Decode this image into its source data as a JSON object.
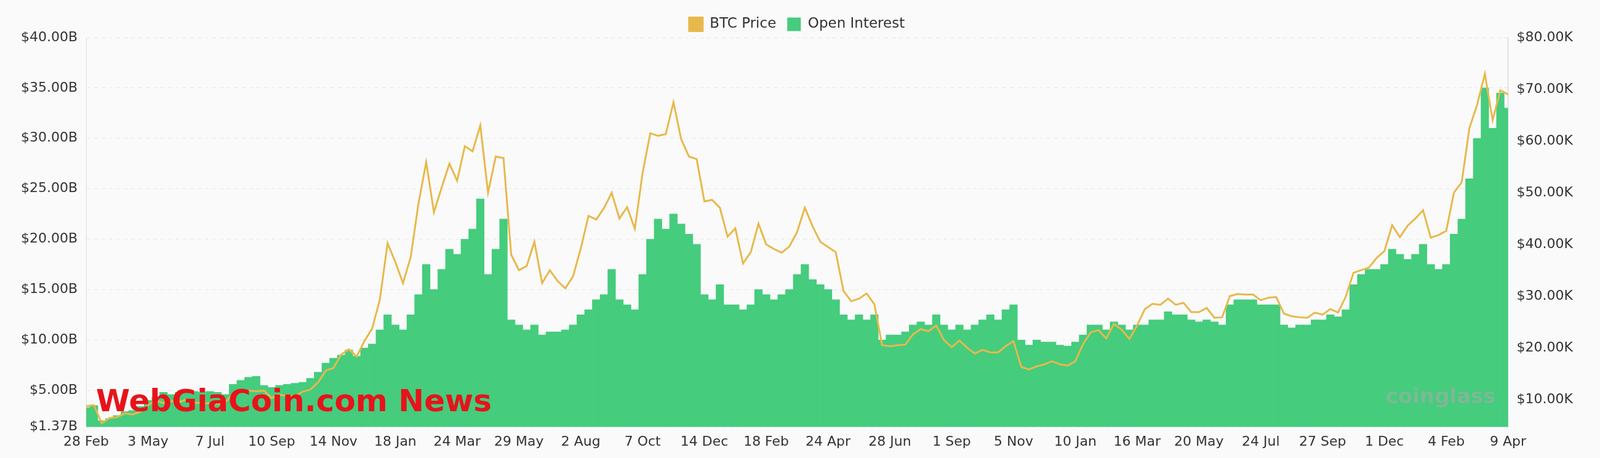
{
  "chart_data": {
    "type": "line",
    "categories": [
      "28 Feb",
      null,
      null,
      null,
      null,
      null,
      null,
      null,
      "3 May",
      null,
      null,
      null,
      null,
      null,
      null,
      null,
      "7 Jul",
      null,
      null,
      null,
      null,
      null,
      null,
      null,
      "10 Sep",
      null,
      null,
      null,
      null,
      null,
      null,
      null,
      "14 Nov",
      null,
      null,
      null,
      null,
      null,
      null,
      null,
      "18 Jan",
      null,
      null,
      null,
      null,
      null,
      null,
      null,
      "24 Mar",
      null,
      null,
      null,
      null,
      null,
      null,
      null,
      "29 May",
      null,
      null,
      null,
      null,
      null,
      null,
      null,
      "2 Aug",
      null,
      null,
      null,
      null,
      null,
      null,
      null,
      "7 Oct",
      null,
      null,
      null,
      null,
      null,
      null,
      null,
      "14 Dec",
      null,
      null,
      null,
      null,
      null,
      null,
      null,
      "18 Feb",
      null,
      null,
      null,
      null,
      null,
      null,
      null,
      "24 Apr",
      null,
      null,
      null,
      null,
      null,
      null,
      null,
      "28 Jun",
      null,
      null,
      null,
      null,
      null,
      null,
      null,
      "1 Sep",
      null,
      null,
      null,
      null,
      null,
      null,
      null,
      "5 Nov",
      null,
      null,
      null,
      null,
      null,
      null,
      null,
      "10 Jan",
      null,
      null,
      null,
      null,
      null,
      null,
      null,
      "16 Mar",
      null,
      null,
      null,
      null,
      null,
      null,
      null,
      "20 May",
      null,
      null,
      null,
      null,
      null,
      null,
      null,
      "24 Jul",
      null,
      null,
      null,
      null,
      null,
      null,
      null,
      "27 Sep",
      null,
      null,
      null,
      null,
      null,
      null,
      null,
      "1 Dec",
      null,
      null,
      null,
      null,
      null,
      null,
      null,
      "4 Feb",
      null,
      null,
      null,
      null,
      null,
      null,
      null,
      "9 Apr"
    ],
    "series": [
      {
        "name": "BTC Price",
        "type": "line",
        "color": "#e8b84b",
        "axis": "y2",
        "values": [
          8700,
          8900,
          5400,
          6400,
          6600,
          7300,
          7100,
          7600,
          8900,
          9800,
          9300,
          9700,
          9500,
          10000,
          9400,
          9300,
          9250,
          9200,
          9500,
          11000,
          11400,
          11700,
          11600,
          11700,
          10300,
          10900,
          10700,
          10600,
          11500,
          11900,
          13300,
          15600,
          16100,
          18700,
          19700,
          18300,
          21300,
          23700,
          29300,
          40200,
          36600,
          32500,
          37600,
          47900,
          55900,
          46200,
          51000,
          55600,
          52300,
          59000,
          58000,
          63000,
          50000,
          57000,
          56700,
          38000,
          35000,
          35800,
          40500,
          32500,
          35000,
          32900,
          31500,
          33800,
          39200,
          45500,
          44800,
          47000,
          50000,
          45000,
          47200,
          43000,
          53800,
          61500,
          61000,
          61300,
          67500,
          60300,
          57000,
          56500,
          48300,
          48600,
          47100,
          41500,
          43100,
          36300,
          38500,
          44000,
          40000,
          39100,
          38400,
          39600,
          42400,
          47100,
          43500,
          40500,
          39500,
          38500,
          31000,
          29000,
          29500,
          30500,
          28400,
          20500,
          20300,
          20500,
          20600,
          22600,
          23600,
          23200,
          24300,
          21500,
          20100,
          21400,
          20000,
          18900,
          19600,
          19100,
          19100,
          20300,
          21300,
          16300,
          15800,
          16400,
          16800,
          17400,
          16800,
          16550,
          17400,
          20700,
          23000,
          23400,
          21800,
          24600,
          23500,
          21700,
          24300,
          27500,
          28500,
          28300,
          29500,
          28300,
          28700,
          26900,
          26900,
          27700,
          25800,
          25900,
          30000,
          30400,
          30300,
          30300,
          29200,
          29700,
          29800,
          26600,
          26100,
          25900,
          25800,
          26800,
          26400,
          27500,
          26800,
          29900,
          34500,
          35000,
          35500,
          37400,
          38700,
          43700,
          41400,
          43600,
          45000,
          46600,
          41300,
          41800,
          42600,
          50000,
          52000,
          62500,
          67000,
          73000,
          64000,
          69800,
          69000
        ]
      },
      {
        "name": "Open Interest",
        "type": "bar",
        "color": "#45cc7d",
        "values": [
          3.3,
          3.5,
          2.0,
          2.2,
          2.5,
          2.9,
          3.0,
          3.4,
          4.0,
          4.3,
          4.8,
          4.6,
          4.8,
          5.0,
          4.9,
          4.8,
          4.9,
          4.8,
          4.6,
          5.6,
          6.0,
          6.3,
          6.4,
          5.5,
          5.3,
          5.5,
          5.6,
          5.7,
          5.8,
          6.2,
          6.8,
          7.7,
          8.2,
          8.5,
          9.0,
          8.4,
          9.2,
          9.6,
          11.0,
          12.5,
          11.5,
          11.0,
          12.5,
          14.5,
          17.5,
          15.0,
          17.0,
          19.0,
          18.5,
          20.0,
          21.0,
          24.0,
          16.5,
          19.0,
          22.0,
          12.0,
          11.5,
          11.0,
          11.5,
          10.5,
          10.8,
          10.8,
          11.0,
          11.5,
          12.5,
          13.0,
          14.0,
          14.5,
          17.0,
          14.0,
          13.5,
          13.0,
          16.5,
          20.0,
          22.0,
          21.0,
          22.5,
          21.5,
          20.5,
          19.5,
          14.5,
          14.0,
          15.5,
          13.5,
          13.5,
          13.0,
          13.5,
          15.0,
          14.5,
          14.0,
          14.5,
          15.0,
          16.5,
          17.5,
          16.0,
          15.5,
          15.0,
          14.0,
          12.5,
          12.0,
          12.5,
          12.0,
          12.5,
          10.0,
          10.5,
          10.5,
          10.8,
          11.5,
          11.8,
          11.5,
          12.5,
          11.5,
          11.0,
          11.5,
          11.0,
          11.5,
          12.0,
          12.5,
          12.0,
          13.0,
          13.5,
          10.0,
          9.5,
          10.0,
          9.8,
          9.8,
          9.5,
          9.4,
          9.8,
          10.5,
          11.5,
          11.5,
          11.0,
          11.8,
          11.5,
          11.0,
          11.5,
          11.5,
          12.0,
          12.0,
          12.8,
          12.5,
          12.5,
          12.0,
          11.8,
          12.0,
          11.8,
          11.5,
          13.5,
          14.0,
          14.0,
          14.0,
          13.5,
          13.5,
          13.5,
          11.5,
          11.2,
          11.5,
          11.5,
          12.0,
          12.0,
          12.5,
          12.3,
          13.0,
          15.5,
          16.5,
          17.0,
          17.0,
          17.5,
          19.0,
          18.5,
          18.0,
          18.5,
          19.5,
          17.5,
          17.0,
          17.5,
          20.5,
          22.0,
          26.0,
          30.0,
          35.0,
          31.0,
          34.5,
          33.0
        ]
      }
    ],
    "ylim": [
      1.37,
      40
    ],
    "yticks": [
      {
        "value": 1.37,
        "label": "$1.37B"
      },
      {
        "value": 5,
        "label": "$5.00B"
      },
      {
        "value": 10,
        "label": "$10.00B"
      },
      {
        "value": 15,
        "label": "$15.00B"
      },
      {
        "value": 20,
        "label": "$20.00B"
      },
      {
        "value": 25,
        "label": "$25.00B"
      },
      {
        "value": 30,
        "label": "$30.00B"
      },
      {
        "value": 35,
        "label": "$35.00B"
      },
      {
        "value": 40,
        "label": "$40.00B"
      }
    ],
    "y2lim": [
      4680,
      80000
    ],
    "y2ticks": [
      {
        "value": 10000,
        "label": "$10.00K"
      },
      {
        "value": 20000,
        "label": "$20.00K"
      },
      {
        "value": 30000,
        "label": "$30.00K"
      },
      {
        "value": 40000,
        "label": "$40.00K"
      },
      {
        "value": 50000,
        "label": "$50.00K"
      },
      {
        "value": 60000,
        "label": "$60.00K"
      },
      {
        "value": 70000,
        "label": "$70.00K"
      },
      {
        "value": 80000,
        "label": "$80.00K"
      }
    ],
    "grid": true,
    "legend": "top",
    "annotations": [
      "WebGiaCoin.com News",
      "coinglass"
    ]
  }
}
